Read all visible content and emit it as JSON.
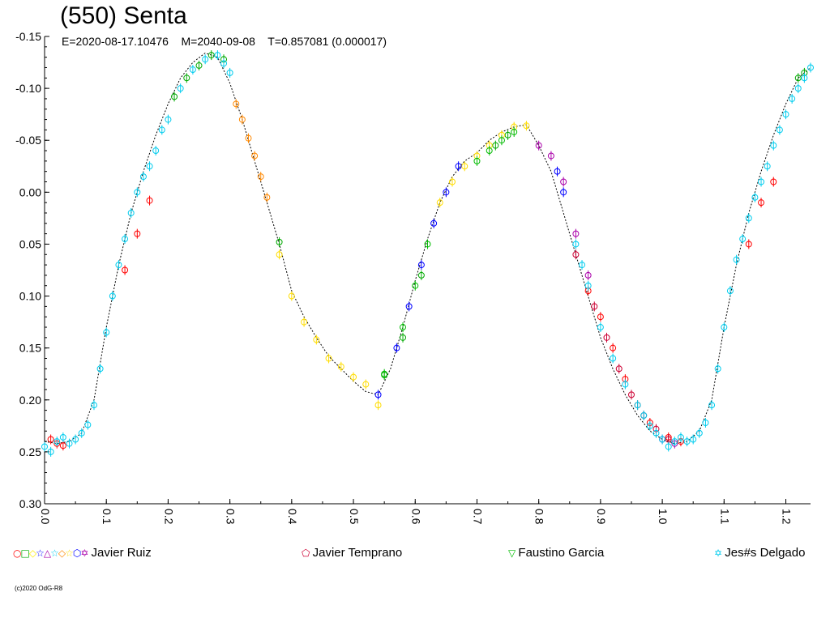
{
  "title": "(550) Senta",
  "subtitle": {
    "epoch": "E=2020-08-17.10476",
    "mid": "M=2040-09-08",
    "period": "T=0.857081 (0.000017)"
  },
  "copyright": "(c)2020 OdG-R8",
  "legend": [
    {
      "symbols": "○□◇☆△☆◇☆⬡✡",
      "symbol_colors": [
        "#ff0000",
        "#00aa00",
        "#ffee00",
        "#0000ff",
        "#aa00aa",
        "#00ccee",
        "#ff8800",
        "#ffdd00",
        "#0000ff",
        "#aa00aa"
      ],
      "label": "Javier Ruiz"
    },
    {
      "symbols": "⬠",
      "symbol_colors": [
        "#cc0033"
      ],
      "label": "Javier Temprano"
    },
    {
      "symbols": "▽",
      "symbol_colors": [
        "#00bb00"
      ],
      "label": "Faustino Garcia"
    },
    {
      "symbols": "✡",
      "symbol_colors": [
        "#00ccee"
      ],
      "label": "Jes#s Delgado"
    }
  ],
  "chart_data": {
    "type": "scatter",
    "title": "(550) Senta",
    "xlabel": "",
    "ylabel": "",
    "xlim": [
      0.0,
      1.24
    ],
    "ylim": [
      -0.15,
      0.3
    ],
    "y_inverted": true,
    "x_ticks": [
      "0.0",
      "0.1",
      "0.2",
      "0.3",
      "0.4",
      "0.5",
      "0.6",
      "0.7",
      "0.8",
      "0.9",
      "1.0",
      "1.1",
      "1.2"
    ],
    "y_ticks": [
      "-0.15",
      "-0.10",
      "-0.05",
      "0.00",
      "0.05",
      "0.10",
      "0.15",
      "0.20",
      "0.25",
      "0.30"
    ],
    "fit_curve": {
      "color": "#000000",
      "x": [
        0.0,
        0.02,
        0.04,
        0.06,
        0.08,
        0.1,
        0.12,
        0.14,
        0.16,
        0.18,
        0.2,
        0.22,
        0.24,
        0.26,
        0.28,
        0.3,
        0.32,
        0.34,
        0.36,
        0.38,
        0.4,
        0.42,
        0.44,
        0.46,
        0.48,
        0.5,
        0.52,
        0.54,
        0.56,
        0.58,
        0.6,
        0.62,
        0.64,
        0.66,
        0.68,
        0.7,
        0.72,
        0.74,
        0.76,
        0.78,
        0.8,
        0.82,
        0.84,
        0.86,
        0.88,
        0.9,
        0.92,
        0.94,
        0.96,
        0.98,
        1.0,
        1.02,
        1.04,
        1.06,
        1.08,
        1.1,
        1.12,
        1.14,
        1.16,
        1.18,
        1.2,
        1.22,
        1.24
      ],
      "y": [
        0.24,
        0.242,
        0.24,
        0.232,
        0.2,
        0.13,
        0.07,
        0.02,
        -0.02,
        -0.055,
        -0.085,
        -0.11,
        -0.125,
        -0.134,
        -0.13,
        -0.105,
        -0.07,
        -0.03,
        0.01,
        0.05,
        0.095,
        0.12,
        0.14,
        0.158,
        0.17,
        0.182,
        0.192,
        0.195,
        0.17,
        0.13,
        0.085,
        0.045,
        0.01,
        -0.015,
        -0.03,
        -0.038,
        -0.05,
        -0.058,
        -0.063,
        -0.065,
        -0.045,
        -0.02,
        0.02,
        0.06,
        0.1,
        0.14,
        0.17,
        0.195,
        0.215,
        0.23,
        0.238,
        0.242,
        0.24,
        0.23,
        0.2,
        0.13,
        0.07,
        0.02,
        -0.02,
        -0.055,
        -0.085,
        -0.11,
        -0.12
      ]
    },
    "series": [
      {
        "name": "Javier Ruiz",
        "color": "#ff0000",
        "x": [
          0.01,
          0.02,
          0.03,
          0.13,
          0.15,
          0.17,
          0.88,
          0.9,
          0.92,
          0.94,
          0.96,
          0.98,
          1.01,
          1.03,
          1.14,
          1.16,
          1.18
        ],
        "y": [
          0.238,
          0.242,
          0.244,
          0.075,
          0.04,
          0.008,
          0.095,
          0.12,
          0.15,
          0.18,
          0.205,
          0.222,
          0.236,
          0.24,
          0.05,
          0.01,
          -0.01
        ]
      },
      {
        "name": "Javier Ruiz",
        "color": "#00aa00",
        "x": [
          0.21,
          0.23,
          0.25,
          0.27,
          0.29,
          0.38,
          1.22,
          1.23,
          0.55,
          0.58,
          0.61,
          0.73,
          0.75
        ],
        "y": [
          -0.092,
          -0.11,
          -0.122,
          -0.132,
          -0.128,
          0.048,
          -0.11,
          -0.115,
          0.176,
          0.14,
          0.08,
          -0.045,
          -0.055
        ]
      },
      {
        "name": "Javier Ruiz",
        "color": "#ff8800",
        "x": [
          0.31,
          0.32,
          0.33,
          0.34,
          0.35,
          0.36
        ],
        "y": [
          -0.085,
          -0.07,
          -0.052,
          -0.035,
          -0.015,
          0.005
        ]
      },
      {
        "name": "Javier Ruiz",
        "color": "#ffdd00",
        "x": [
          0.38,
          0.4,
          0.42,
          0.44,
          0.46,
          0.48,
          0.5,
          0.52,
          0.54,
          0.64,
          0.66,
          0.68,
          0.7,
          0.72,
          0.74,
          0.76,
          0.78
        ],
        "y": [
          0.06,
          0.1,
          0.125,
          0.142,
          0.16,
          0.168,
          0.178,
          0.185,
          0.205,
          0.01,
          -0.01,
          -0.025,
          -0.035,
          -0.045,
          -0.055,
          -0.063,
          -0.064
        ]
      },
      {
        "name": "Javier Ruiz",
        "color": "#0000ff",
        "x": [
          0.54,
          0.57,
          0.59,
          0.61,
          0.63,
          0.65,
          0.67,
          0.83,
          0.84
        ],
        "y": [
          0.195,
          0.15,
          0.11,
          0.07,
          0.03,
          0.0,
          -0.025,
          -0.02,
          0.0
        ]
      },
      {
        "name": "Javier Ruiz",
        "color": "#aa00aa",
        "x": [
          0.8,
          0.82,
          0.84,
          0.86,
          0.88,
          1.0,
          1.02
        ],
        "y": [
          -0.045,
          -0.035,
          -0.01,
          0.04,
          0.08,
          0.238,
          0.242
        ]
      },
      {
        "name": "Javier Temprano",
        "color": "#cc0033",
        "x": [
          0.86,
          0.89,
          0.91,
          0.93,
          0.95,
          0.97,
          0.99,
          1.01
        ],
        "y": [
          0.06,
          0.11,
          0.14,
          0.17,
          0.195,
          0.215,
          0.228,
          0.238
        ]
      },
      {
        "name": "Faustino Garcia",
        "color": "#00bb00",
        "x": [
          0.55,
          0.58,
          0.6,
          0.62,
          0.7,
          0.72,
          0.74,
          0.76
        ],
        "y": [
          0.175,
          0.13,
          0.09,
          0.05,
          -0.03,
          -0.04,
          -0.05,
          -0.058
        ]
      },
      {
        "name": "Jes#s Delgado",
        "color": "#00ccee",
        "x": [
          0.0,
          0.01,
          0.02,
          0.03,
          0.04,
          0.05,
          0.06,
          0.07,
          0.08,
          0.09,
          0.1,
          0.11,
          0.12,
          0.13,
          0.14,
          0.15,
          0.16,
          0.17,
          0.18,
          0.19,
          0.2,
          0.22,
          0.24,
          0.26,
          0.28,
          0.29,
          0.3,
          0.86,
          0.87,
          0.88,
          0.9,
          0.92,
          0.94,
          0.96,
          0.97,
          0.98,
          0.99,
          1.0,
          1.01,
          1.02,
          1.03,
          1.04,
          1.05,
          1.06,
          1.07,
          1.08,
          1.09,
          1.1,
          1.11,
          1.12,
          1.13,
          1.14,
          1.15,
          1.16,
          1.17,
          1.18,
          1.19,
          1.2,
          1.21,
          1.22,
          1.23,
          1.24
        ],
        "y": [
          0.245,
          0.25,
          0.24,
          0.236,
          0.242,
          0.238,
          0.232,
          0.224,
          0.205,
          0.17,
          0.135,
          0.1,
          0.07,
          0.045,
          0.02,
          0.0,
          -0.015,
          -0.025,
          -0.04,
          -0.06,
          -0.07,
          -0.1,
          -0.118,
          -0.128,
          -0.132,
          -0.124,
          -0.115,
          0.05,
          0.07,
          0.09,
          0.13,
          0.16,
          0.185,
          0.205,
          0.215,
          0.225,
          0.232,
          0.238,
          0.245,
          0.24,
          0.236,
          0.24,
          0.238,
          0.232,
          0.222,
          0.205,
          0.17,
          0.13,
          0.095,
          0.065,
          0.045,
          0.025,
          0.005,
          -0.01,
          -0.025,
          -0.045,
          -0.06,
          -0.075,
          -0.09,
          -0.1,
          -0.11,
          -0.12
        ]
      }
    ]
  }
}
